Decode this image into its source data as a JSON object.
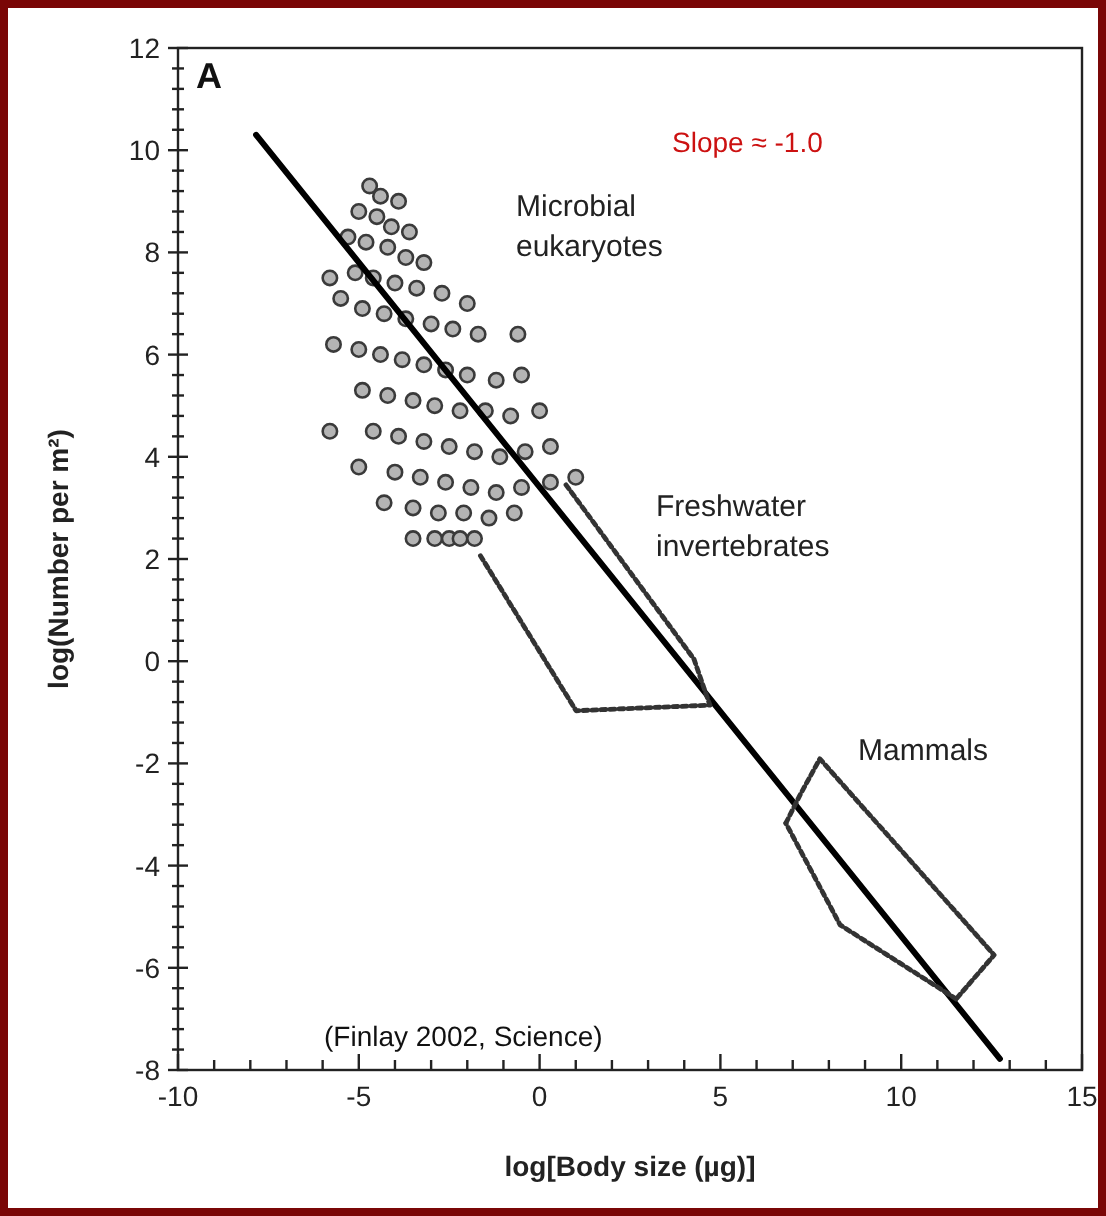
{
  "chart_data": {
    "type": "scatter",
    "xlabel": "log[Body size (µg)]",
    "ylabel": "log(Number per m²)",
    "xlim": [
      -10,
      15
    ],
    "ylim": [
      -8,
      12
    ],
    "xticks": [
      -10,
      {
        "value": -9,
        "label": null
      },
      {
        "value": -8,
        "label": null
      },
      {
        "value": -7,
        "label": null
      },
      {
        "value": -6,
        "label": null
      },
      -5,
      {
        "value": -4,
        "label": null
      },
      {
        "value": -3,
        "label": null
      },
      {
        "value": -2,
        "label": null
      },
      {
        "value": -1,
        "label": null
      },
      0,
      {
        "value": 1,
        "label": null
      },
      {
        "value": 2,
        "label": null
      },
      {
        "value": 3,
        "label": null
      },
      {
        "value": 4,
        "label": null
      },
      5,
      {
        "value": 6,
        "label": null
      },
      {
        "value": 7,
        "label": null
      },
      {
        "value": 8,
        "label": null
      },
      {
        "value": 9,
        "label": null
      },
      10,
      {
        "value": 11,
        "label": null
      },
      {
        "value": 12,
        "label": null
      },
      {
        "value": 13,
        "label": null
      },
      {
        "value": 14,
        "label": null
      },
      15
    ],
    "yticks": [
      -8,
      {
        "value": -7.6,
        "label": null
      },
      {
        "value": -7.2,
        "label": null
      },
      {
        "value": -6.8,
        "label": null
      },
      {
        "value": -6.4,
        "label": null
      },
      -6,
      {
        "value": -5.6,
        "label": null
      },
      {
        "value": -5.2,
        "label": null
      },
      {
        "value": -4.8,
        "label": null
      },
      {
        "value": -4.4,
        "label": null
      },
      -4,
      {
        "value": -3.6,
        "label": null
      },
      {
        "value": -3.2,
        "label": null
      },
      {
        "value": -2.8,
        "label": null
      },
      {
        "value": -2.4,
        "label": null
      },
      -2,
      {
        "value": -1.6,
        "label": null
      },
      {
        "value": -1.2,
        "label": null
      },
      {
        "value": -0.8,
        "label": null
      },
      {
        "value": -0.4,
        "label": null
      },
      0,
      {
        "value": 0.4,
        "label": null
      },
      {
        "value": 0.8,
        "label": null
      },
      {
        "value": 1.2,
        "label": null
      },
      {
        "value": 1.6,
        "label": null
      },
      2,
      {
        "value": 2.4,
        "label": null
      },
      {
        "value": 2.8,
        "label": null
      },
      {
        "value": 3.2,
        "label": null
      },
      {
        "value": 3.6,
        "label": null
      },
      4,
      {
        "value": 4.4,
        "label": null
      },
      {
        "value": 4.8,
        "label": null
      },
      {
        "value": 5.2,
        "label": null
      },
      {
        "value": 5.6,
        "label": null
      },
      6,
      {
        "value": 6.4,
        "label": null
      },
      {
        "value": 6.8,
        "label": null
      },
      {
        "value": 7.2,
        "label": null
      },
      {
        "value": 7.6,
        "label": null
      },
      8,
      {
        "value": 8.4,
        "label": null
      },
      {
        "value": 8.8,
        "label": null
      },
      {
        "value": 9.2,
        "label": null
      },
      {
        "value": 9.6,
        "label": null
      },
      10,
      {
        "value": 10.4,
        "label": null
      },
      {
        "value": 10.8,
        "label": null
      },
      {
        "value": 11.2,
        "label": null
      },
      {
        "value": 11.6,
        "label": null
      },
      12
    ],
    "grid": false,
    "series": [
      {
        "type": "scatter",
        "color": "#b4b4b4",
        "marker": "circle",
        "x": [
          -4.7,
          -4.4,
          -3.9,
          -5.0,
          -4.5,
          -4.1,
          -3.6,
          -5.3,
          -4.8,
          -4.2,
          -3.7,
          -3.2,
          -5.8,
          -5.1,
          -4.6,
          -4.0,
          -3.4,
          -2.7,
          -2.0,
          -5.5,
          -4.9,
          -4.3,
          -3.7,
          -3.0,
          -2.4,
          -1.7,
          -0.6,
          -5.7,
          -5.0,
          -4.4,
          -3.8,
          -3.2,
          -2.6,
          -2.0,
          -1.2,
          -0.5,
          -4.9,
          -4.2,
          -3.5,
          -2.9,
          -2.2,
          -1.5,
          -0.8,
          0.0,
          -5.8,
          -4.6,
          -3.9,
          -3.2,
          -2.5,
          -1.8,
          -1.1,
          -0.4,
          0.3,
          -5.0,
          -4.0,
          -3.3,
          -2.6,
          -1.9,
          -1.2,
          -0.5,
          0.3,
          1.0,
          -4.3,
          -3.5,
          -2.8,
          -2.1,
          -1.4,
          -0.7,
          -3.5,
          -2.9,
          -2.5,
          -2.2,
          -1.8
        ],
        "values": [
          9.3,
          9.1,
          9.0,
          8.8,
          8.7,
          8.5,
          8.4,
          8.3,
          8.2,
          8.1,
          7.9,
          7.8,
          7.5,
          7.6,
          7.5,
          7.4,
          7.3,
          7.2,
          7.0,
          7.1,
          6.9,
          6.8,
          6.7,
          6.6,
          6.5,
          6.4,
          6.4,
          6.2,
          6.1,
          6.0,
          5.9,
          5.8,
          5.7,
          5.6,
          5.5,
          5.6,
          5.3,
          5.2,
          5.1,
          5.0,
          4.9,
          4.9,
          4.8,
          4.9,
          4.5,
          4.5,
          4.4,
          4.3,
          4.2,
          4.1,
          4.0,
          4.1,
          4.2,
          3.8,
          3.7,
          3.6,
          3.5,
          3.4,
          3.3,
          3.4,
          3.5,
          3.6,
          3.1,
          3.0,
          2.9,
          2.9,
          2.8,
          2.9,
          2.4,
          2.4,
          2.4,
          2.4,
          2.4
        ]
      },
      {
        "type": "line",
        "color": "#000000",
        "marker": "none",
        "line_style": "solid",
        "x": [
          -7.84,
          12.73
        ],
        "values": [
          10.3,
          -7.78
        ]
      },
      {
        "type": "line",
        "color": "#333333",
        "marker": "none",
        "line_style": "dotted",
        "x": [
          0.73,
          4.27,
          4.71,
          1.01,
          -1.65
        ],
        "values": [
          3.45,
          0.04,
          -0.86,
          -0.97,
          2.08
        ]
      },
      {
        "type": "line",
        "color": "#333333",
        "marker": "none",
        "line_style": "dotted",
        "x": [
          6.81,
          7.2,
          7.75,
          12.57,
          11.52
        ],
        "values": [
          -3.17,
          -2.62,
          -1.91,
          -5.75,
          -6.61
        ]
      },
      {
        "type": "line",
        "color": "#333333",
        "marker": "none",
        "line_style": "dotted",
        "x": [
          11.52,
          8.31,
          6.81
        ],
        "values": [
          -6.61,
          -5.16,
          -3.17
        ]
      }
    ],
    "annotations": [
      "Slope ≈ -1.0",
      "Microbial\neukaryotes",
      "Freshwater\ninvertebrates",
      "Mammals",
      "A",
      "(Finlay 2002, Science)"
    ]
  }
}
